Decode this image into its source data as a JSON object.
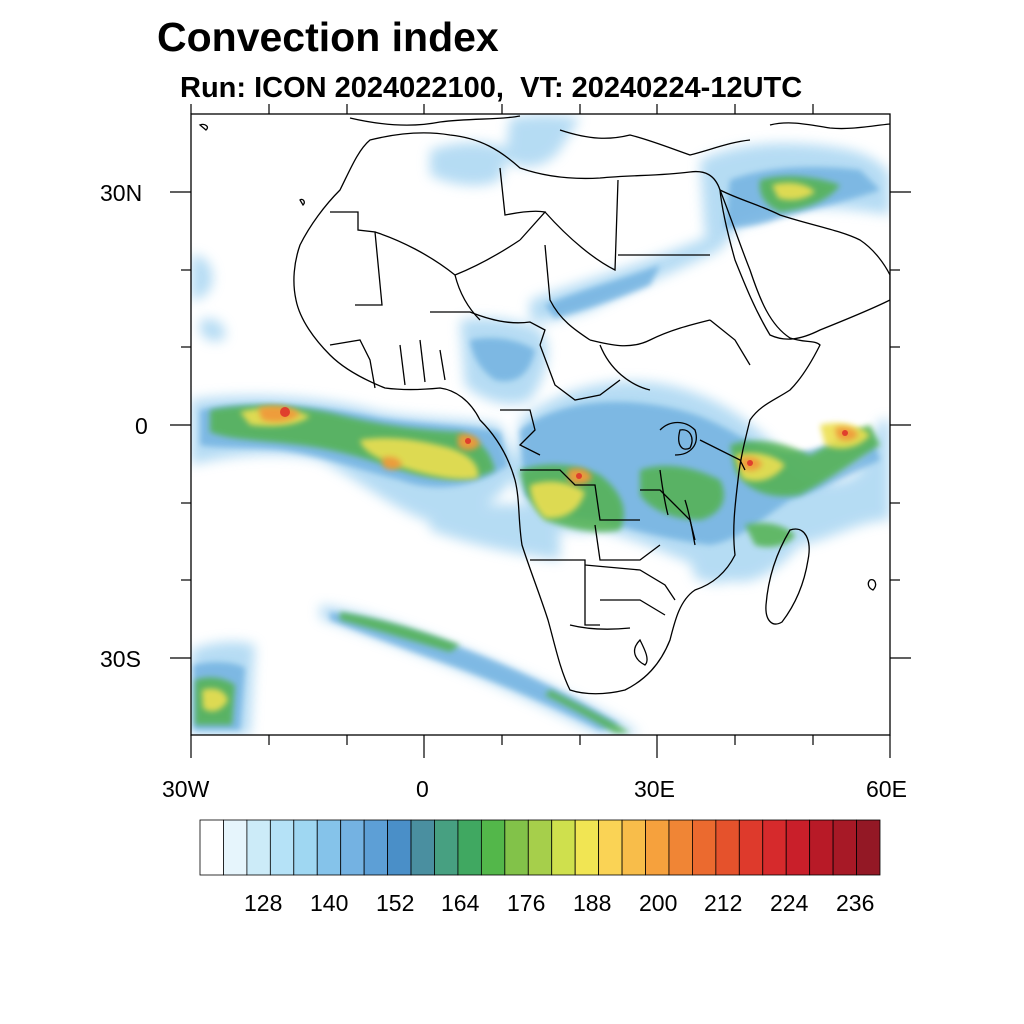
{
  "title": "Convection index",
  "subtitle": "Run: ICON 2024022100,  VT: 20240224-12UTC",
  "axes": {
    "lat_labels": [
      "30N",
      "0",
      "30S"
    ],
    "lon_labels": [
      "30W",
      "0",
      "30E",
      "60E"
    ]
  },
  "colorbar": {
    "tick_labels": [
      "128",
      "140",
      "152",
      "164",
      "176",
      "188",
      "200",
      "212",
      "224",
      "236"
    ],
    "colors": [
      "#ffffff",
      "#e6f5fc",
      "#ccebf8",
      "#b5e2f7",
      "#9fd7f2",
      "#85c3ea",
      "#74b2e2",
      "#5d9fd6",
      "#4a8fc8",
      "#4a8fa0",
      "#47a081",
      "#40a861",
      "#53b74a",
      "#82c249",
      "#a6cf4b",
      "#cfe04d",
      "#f1e553",
      "#fad355",
      "#f8bd4a",
      "#f6a13d",
      "#f08535",
      "#eb6a2f",
      "#e5522c",
      "#de3a2c",
      "#d62a2c",
      "#c91f2a",
      "#b81a27",
      "#a71926",
      "#931825"
    ]
  }
}
